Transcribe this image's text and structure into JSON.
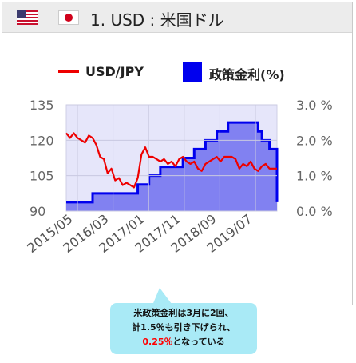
{
  "header": {
    "title": "1. USD : 米国ドル",
    "flags": [
      "us-flag",
      "jp-flag"
    ]
  },
  "legend": {
    "line_label": "USD/JPY",
    "bar_label": "政策金利(%)"
  },
  "colors": {
    "exchange_line": "#ee0000",
    "policy_area": "#0000ee",
    "plot_bg": "#e6e6fa",
    "callout_bg": "#a9eaf6",
    "highlight": "#ff0000"
  },
  "callout": {
    "line1": "米政策金利は3月に2回、",
    "line2": "計1.5％も引き下げられ、",
    "line3_highlight": "0.25％",
    "line3_rest": "となっている"
  },
  "chart_data": {
    "type": "line",
    "x_ticks": [
      "2015/05",
      "2016/03",
      "2017/01",
      "2017/11",
      "2018/09",
      "2019/07"
    ],
    "left_axis": {
      "ticks": [
        "135",
        "120",
        "105",
        "90"
      ],
      "ylim": [
        90,
        135
      ]
    },
    "right_axis": {
      "ticks": [
        "3.0 %",
        "2.0 %",
        "1.0 %",
        "0.0 %"
      ],
      "ylim": [
        0,
        3
      ]
    },
    "series": [
      {
        "name": "USD/JPY",
        "axis": "left",
        "style": "line",
        "values": [
          123,
          121,
          123,
          121,
          120,
          119,
          122,
          121,
          118,
          113,
          112,
          106,
          108,
          103,
          104,
          101,
          102,
          101,
          100,
          104,
          114,
          117,
          113,
          113,
          112,
          111,
          112,
          110,
          111,
          109,
          112,
          113,
          111,
          110,
          111,
          108,
          107,
          110,
          111,
          112,
          113,
          111,
          113,
          113,
          113,
          112,
          108,
          110,
          109,
          111,
          108,
          107,
          109,
          110,
          108,
          108,
          108
        ]
      },
      {
        "name": "政策金利(%)",
        "axis": "right",
        "style": "step-area",
        "values": [
          0.25,
          0.25,
          0.25,
          0.25,
          0.25,
          0.25,
          0.25,
          0.5,
          0.5,
          0.5,
          0.5,
          0.5,
          0.5,
          0.5,
          0.5,
          0.5,
          0.5,
          0.5,
          0.5,
          0.75,
          0.75,
          0.75,
          1.0,
          1.0,
          1.0,
          1.25,
          1.25,
          1.25,
          1.25,
          1.25,
          1.25,
          1.5,
          1.5,
          1.5,
          1.75,
          1.75,
          1.75,
          2.0,
          2.0,
          2.0,
          2.25,
          2.25,
          2.25,
          2.5,
          2.5,
          2.5,
          2.5,
          2.5,
          2.5,
          2.5,
          2.5,
          2.25,
          2.0,
          2.0,
          1.75,
          1.75,
          0.25
        ]
      }
    ]
  }
}
